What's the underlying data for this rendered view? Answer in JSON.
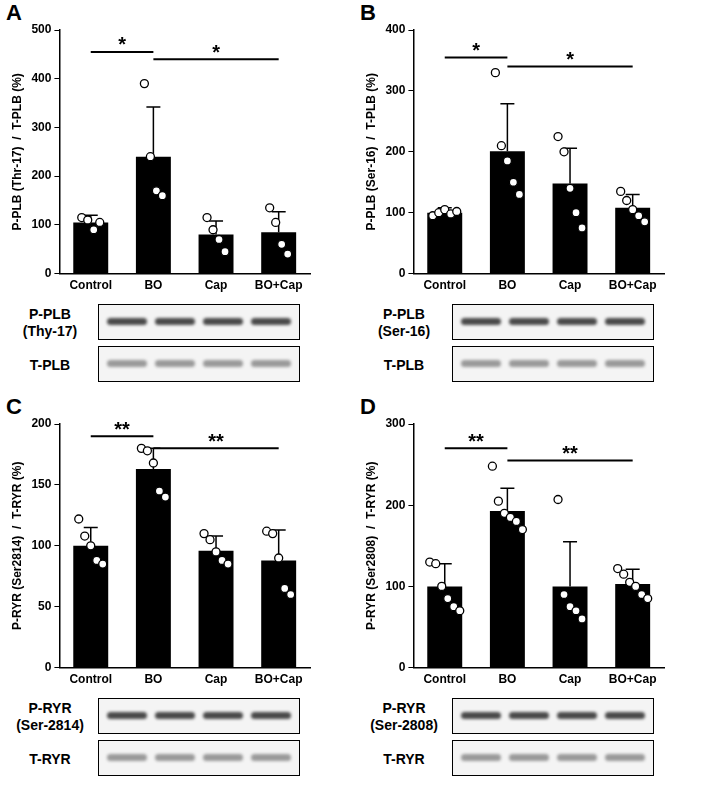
{
  "chart_data": [
    {
      "type": "bar",
      "title": "A",
      "color": "#000000",
      "grid": false,
      "y_label": "P-PLB (Thr-17)  /  T-PLB (%)",
      "categories": [
        "Control",
        "BO",
        "Cap",
        "BO+Cap"
      ],
      "values": [
        105,
        240,
        80,
        85
      ],
      "error": [
        15,
        102,
        28,
        42
      ],
      "points": [
        [
          115,
          110,
          90,
          105
        ],
        [
          390,
          240,
          170,
          160
        ],
        [
          115,
          90,
          70,
          45
        ],
        [
          135,
          105,
          60,
          40
        ]
      ],
      "ylim": [
        0,
        500
      ],
      "yticks": [
        0,
        100,
        200,
        300,
        400,
        500
      ],
      "significance": [
        {
          "from": "Control",
          "to": "BO",
          "label": "*",
          "y": 455
        },
        {
          "from": "BO",
          "to": "BO+Cap",
          "label": "*",
          "y": 440
        }
      ],
      "blot": [
        "P-PLB (Thy-17)",
        "T-PLB"
      ]
    },
    {
      "type": "bar",
      "title": "B",
      "color": "#000000",
      "grid": false,
      "y_label": "P-PLB (Ser-16)  /  T-PLB (%)",
      "categories": [
        "Control",
        "BO",
        "Cap",
        "BO+Cap"
      ],
      "values": [
        100,
        201,
        148,
        108
      ],
      "error": [
        8,
        78,
        58,
        22
      ],
      "points": [
        [
          95,
          100,
          105,
          98,
          102
        ],
        [
          330,
          210,
          185,
          150,
          130
        ],
        [
          225,
          200,
          140,
          100,
          75
        ],
        [
          135,
          120,
          105,
          95,
          85
        ]
      ],
      "ylim": [
        0,
        400
      ],
      "yticks": [
        0,
        100,
        200,
        300,
        400
      ],
      "significance": [
        {
          "from": "Control",
          "to": "BO",
          "label": "*",
          "y": 355
        },
        {
          "from": "BO",
          "to": "BO+Cap",
          "label": "*",
          "y": 340
        }
      ],
      "blot": [
        "P-PLB (Ser-16)",
        "T-PLB"
      ]
    },
    {
      "type": "bar",
      "title": "C",
      "color": "#000000",
      "grid": false,
      "y_label": "P-RYR (Ser2814)  /  T-RYR (%)",
      "categories": [
        "Control",
        "BO",
        "Cap",
        "BO+Cap"
      ],
      "values": [
        100,
        163,
        96,
        88
      ],
      "error": [
        15,
        17,
        12,
        25
      ],
      "points": [
        [
          122,
          108,
          100,
          88,
          85
        ],
        [
          180,
          178,
          168,
          145,
          140
        ],
        [
          110,
          105,
          95,
          88,
          85
        ],
        [
          112,
          110,
          90,
          65,
          60
        ]
      ],
      "ylim": [
        0,
        200
      ],
      "yticks": [
        0,
        50,
        100,
        150,
        200
      ],
      "significance": [
        {
          "from": "Control",
          "to": "BO",
          "label": "**",
          "y": 190
        },
        {
          "from": "BO",
          "to": "BO+Cap",
          "label": "**",
          "y": 180
        }
      ],
      "blot": [
        "P-RYR (Ser-2814)",
        "T-RYR"
      ]
    },
    {
      "type": "bar",
      "title": "D",
      "color": "#000000",
      "grid": false,
      "y_label": "P-RYR (Ser2808)  /  T-RYR (%)",
      "categories": [
        "Control",
        "BO",
        "Cap",
        "BO+Cap"
      ],
      "values": [
        100,
        193,
        100,
        103
      ],
      "error": [
        28,
        28,
        55,
        18
      ],
      "points": [
        [
          130,
          128,
          100,
          85,
          75,
          70
        ],
        [
          248,
          205,
          190,
          185,
          180,
          170
        ],
        [
          207,
          90,
          75,
          70,
          60
        ],
        [
          122,
          115,
          105,
          100,
          90,
          85
        ]
      ],
      "ylim": [
        0,
        300
      ],
      "yticks": [
        0,
        100,
        200,
        300
      ],
      "significance": [
        {
          "from": "Control",
          "to": "BO",
          "label": "**",
          "y": 270
        },
        {
          "from": "BO",
          "to": "BO+Cap",
          "label": "**",
          "y": 255
        }
      ],
      "blot": [
        "P-RYR (Ser-2808)",
        "T-RYR"
      ]
    }
  ]
}
